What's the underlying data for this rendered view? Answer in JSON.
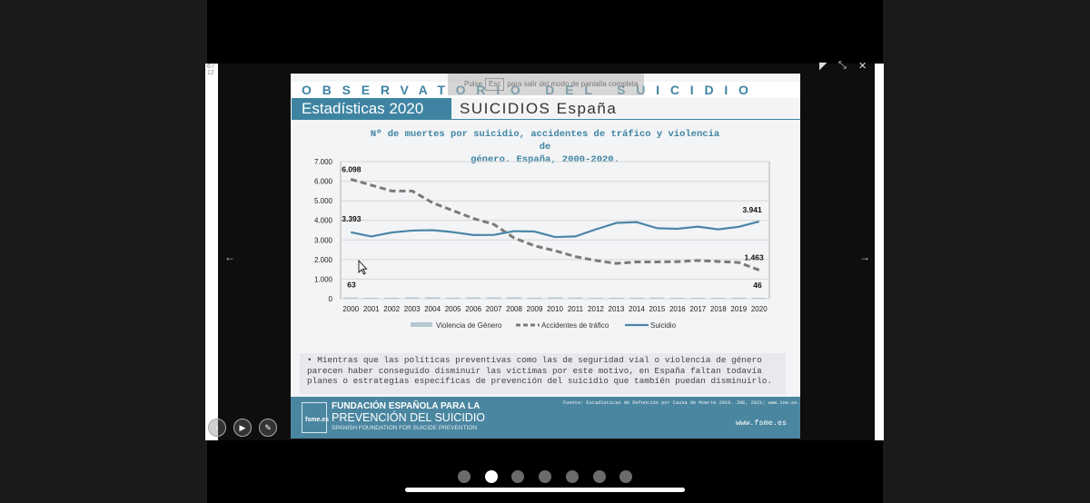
{
  "viewer": {
    "page_indicator": "6 / 12",
    "fullscreen_hint": {
      "prefix": "Pulse",
      "key": "Esc",
      "suffix": "para salir del modo de pantalla completa"
    }
  },
  "slide": {
    "banner": "OBSERVATORIO DEL SUICIDIO",
    "stats_label": "Estadísticas 2020",
    "section_title": "SUICIDIOS España",
    "chart_title_line1": "Nº de muertes por suicidio, accidentes de tráfico y violencia de",
    "chart_title_line2": "género. España, 2000-2020.",
    "note": "• Mientras que las políticas preventivas como las de seguridad vial o violencia de género parecen haber conseguido disminuir las víctimas por este motivo, en España faltan todavía planes o estrategias específicas de prevención del suicidio que también puedan disminuirlo.",
    "footer": {
      "logo_text": "fsme.es",
      "line1": "FUNDACIÓN ESPAÑOLA PARA LA",
      "line2": "PREVENCIÓN DEL SUICIDIO",
      "line3": "SPANISH FOUNDATION FOR SUICIDE PREVENTION",
      "source": "Fuente: Estadísticas de Defunción por Causa de Muerte 2019. INE, 2021; www.ine.es.",
      "website": "www.fsme.es"
    }
  },
  "chart_data": {
    "type": "line",
    "title": "Nº de muertes por suicidio, accidentes de tráfico y violencia de género. España, 2000-2020.",
    "x": [
      "2000",
      "2001",
      "2002",
      "2003",
      "2004",
      "2005",
      "2006",
      "2007",
      "2008",
      "2009",
      "2010",
      "2011",
      "2012",
      "2013",
      "2014",
      "2015",
      "2016",
      "2017",
      "2018",
      "2019",
      "2020"
    ],
    "y_ticks": [
      "0",
      "1.000",
      "2.000",
      "3.000",
      "4.000",
      "5.000",
      "6.000",
      "7.000"
    ],
    "ylim": [
      0,
      7000
    ],
    "grid": true,
    "legend_position": "bottom",
    "series": [
      {
        "name": "Violencia de Género",
        "style": "bar-light",
        "color": "#b7c7d0",
        "values": [
          63,
          50,
          54,
          71,
          72,
          57,
          69,
          71,
          76,
          56,
          73,
          61,
          52,
          54,
          55,
          60,
          49,
          51,
          51,
          56,
          46
        ]
      },
      {
        "name": "Accidentes de tráfico",
        "style": "dashed",
        "color": "#7a7a7a",
        "values": [
          6098,
          5800,
          5500,
          5500,
          4900,
          4500,
          4100,
          3800,
          3100,
          2700,
          2450,
          2150,
          1950,
          1800,
          1880,
          1880,
          1890,
          1950,
          1900,
          1850,
          1463
        ]
      },
      {
        "name": "Suicidio",
        "style": "solid",
        "color": "#4a86a8",
        "values": [
          3393,
          3180,
          3380,
          3480,
          3500,
          3400,
          3250,
          3260,
          3450,
          3430,
          3150,
          3180,
          3540,
          3870,
          3910,
          3600,
          3570,
          3680,
          3540,
          3670,
          3941
        ]
      }
    ],
    "data_labels": [
      {
        "text": "6.098"
      },
      {
        "text": "3.393"
      },
      {
        "text": "63"
      },
      {
        "text": "3.941"
      },
      {
        "text": "1.463"
      },
      {
        "text": "46"
      }
    ]
  },
  "controls": {
    "prev_label": "‹",
    "play_label": "▶",
    "pen_label": "✎"
  },
  "pagination": {
    "count": 7,
    "active": 1
  }
}
